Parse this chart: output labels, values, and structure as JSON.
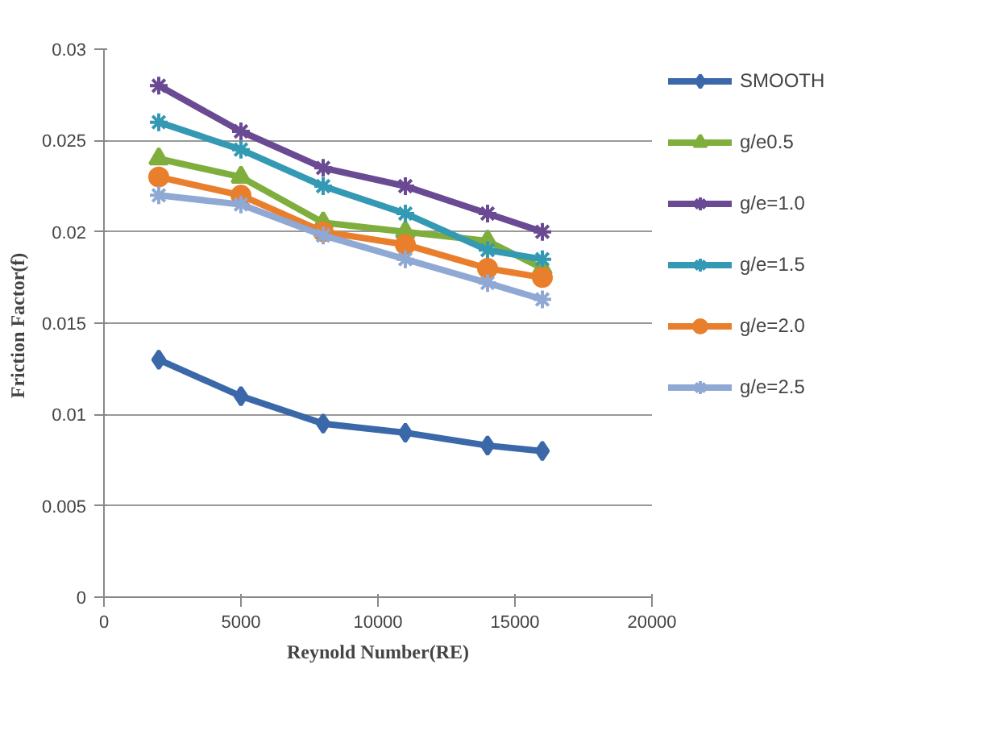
{
  "chart_data": {
    "type": "line",
    "xlabel": "Reynold Number(RE)",
    "ylabel": "Friction  Factor(f)",
    "x": [
      2000,
      5000,
      8000,
      11000,
      14000,
      16000
    ],
    "xlim": [
      0,
      20000
    ],
    "xticks": [
      0,
      5000,
      10000,
      15000,
      20000
    ],
    "ylim": [
      0,
      0.03
    ],
    "yticks": [
      {
        "value": 0,
        "label": "0"
      },
      {
        "value": 0.005,
        "label": "0.005"
      },
      {
        "value": 0.01,
        "label": "0.01"
      },
      {
        "value": 0.015,
        "label": "0.015"
      },
      {
        "value": 0.02,
        "label": "0.02"
      },
      {
        "value": 0.025,
        "label": "0.025"
      },
      {
        "value": 0.03,
        "label": "0.03"
      }
    ],
    "grid": "y",
    "legend": "right",
    "line_style": "solid",
    "series": [
      {
        "name": "SMOOTH",
        "color": "#3a68a8",
        "marker": "diamond",
        "values": [
          0.013,
          0.011,
          0.0095,
          0.009,
          0.0083,
          0.008
        ]
      },
      {
        "name": "g/e0.5",
        "color": "#7fae3c",
        "marker": "triangle",
        "values": [
          0.024,
          0.023,
          0.0205,
          0.02,
          0.0195,
          0.018
        ]
      },
      {
        "name": "g/e=1.0",
        "color": "#6a4a93",
        "marker": "cross",
        "values": [
          0.028,
          0.0255,
          0.0235,
          0.0225,
          0.021,
          0.02
        ]
      },
      {
        "name": "g/e=1.5",
        "color": "#3499b3",
        "marker": "cross",
        "values": [
          0.026,
          0.0245,
          0.0225,
          0.021,
          0.019,
          0.0185
        ]
      },
      {
        "name": "g/e=2.0",
        "color": "#e97f2c",
        "marker": "circle",
        "values": [
          0.023,
          0.022,
          0.02,
          0.0193,
          0.018,
          0.0175
        ]
      },
      {
        "name": "g/e=2.5",
        "color": "#8fa8d4",
        "marker": "cross",
        "values": [
          0.022,
          0.0215,
          0.0198,
          0.0185,
          0.0172,
          0.0163
        ]
      }
    ]
  }
}
